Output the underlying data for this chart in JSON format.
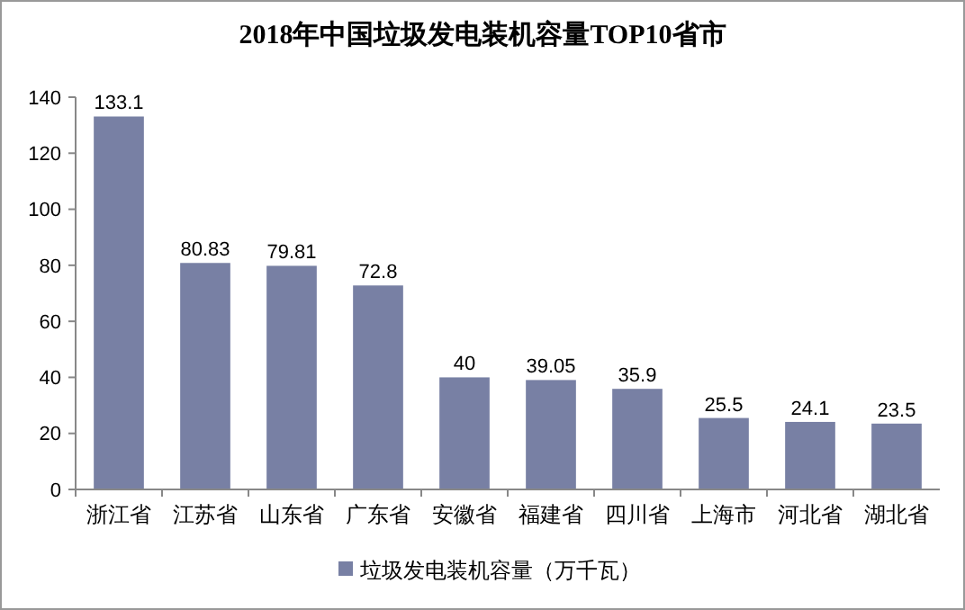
{
  "chart_data": {
    "type": "bar",
    "title": "2018年中国垃圾发电装机容量TOP10省市",
    "categories": [
      "浙江省",
      "江苏省",
      "山东省",
      "广东省",
      "安徽省",
      "福建省",
      "四川省",
      "上海市",
      "河北省",
      "湖北省"
    ],
    "series": [
      {
        "name": "垃圾发电装机容量（万千瓦）",
        "color": "#7880a4",
        "values": [
          133.1,
          80.83,
          79.81,
          72.8,
          40,
          39.05,
          35.9,
          25.5,
          24.1,
          23.5
        ]
      }
    ],
    "ylim": [
      0,
      140
    ],
    "yticks": [
      0,
      20,
      40,
      60,
      80,
      100,
      120,
      140
    ],
    "data_labels": true,
    "legend": "bottom",
    "grid": false
  }
}
